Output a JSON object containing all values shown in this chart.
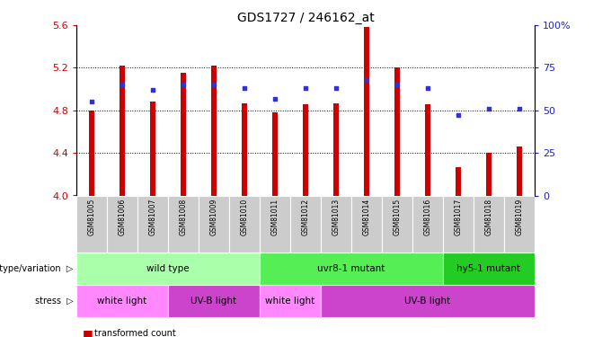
{
  "title": "GDS1727 / 246162_at",
  "samples": [
    "GSM81005",
    "GSM81006",
    "GSM81007",
    "GSM81008",
    "GSM81009",
    "GSM81010",
    "GSM81011",
    "GSM81012",
    "GSM81013",
    "GSM81014",
    "GSM81015",
    "GSM81016",
    "GSM81017",
    "GSM81018",
    "GSM81019"
  ],
  "bar_values": [
    4.8,
    5.22,
    4.88,
    5.15,
    5.22,
    4.87,
    4.78,
    4.86,
    4.87,
    5.58,
    5.2,
    4.86,
    4.27,
    4.4,
    4.46
  ],
  "dot_values": [
    55,
    65,
    62,
    65,
    65,
    63,
    57,
    63,
    63,
    68,
    65,
    63,
    47,
    51,
    51
  ],
  "ylim_left": [
    4.0,
    5.6
  ],
  "ylim_right": [
    0,
    100
  ],
  "yticks_left": [
    4.0,
    4.4,
    4.8,
    5.2,
    5.6
  ],
  "yticks_right": [
    0,
    25,
    50,
    75,
    100
  ],
  "ytick_right_labels": [
    "0",
    "25",
    "50",
    "75",
    "100%"
  ],
  "bar_color": "#cc0000",
  "dot_color": "#3333cc",
  "bar_width": 0.18,
  "genotype_groups": [
    {
      "label": "wild type",
      "start": 0,
      "end": 6,
      "color": "#aaffaa"
    },
    {
      "label": "uvr8-1 mutant",
      "start": 6,
      "end": 12,
      "color": "#55ee55"
    },
    {
      "label": "hy5-1 mutant",
      "start": 12,
      "end": 15,
      "color": "#22cc22"
    }
  ],
  "stress_groups": [
    {
      "label": "white light",
      "start": 0,
      "end": 3,
      "color": "#ff88ff"
    },
    {
      "label": "UV-B light",
      "start": 3,
      "end": 6,
      "color": "#cc44cc"
    },
    {
      "label": "white light",
      "start": 6,
      "end": 8,
      "color": "#ff88ff"
    },
    {
      "label": "UV-B light",
      "start": 8,
      "end": 15,
      "color": "#cc44cc"
    }
  ],
  "xlabel_color": "#cc0000",
  "ylabel_right_color": "#2222bb",
  "label_row_color": "#cccccc",
  "grid_yticks": [
    4.4,
    4.8,
    5.2
  ]
}
